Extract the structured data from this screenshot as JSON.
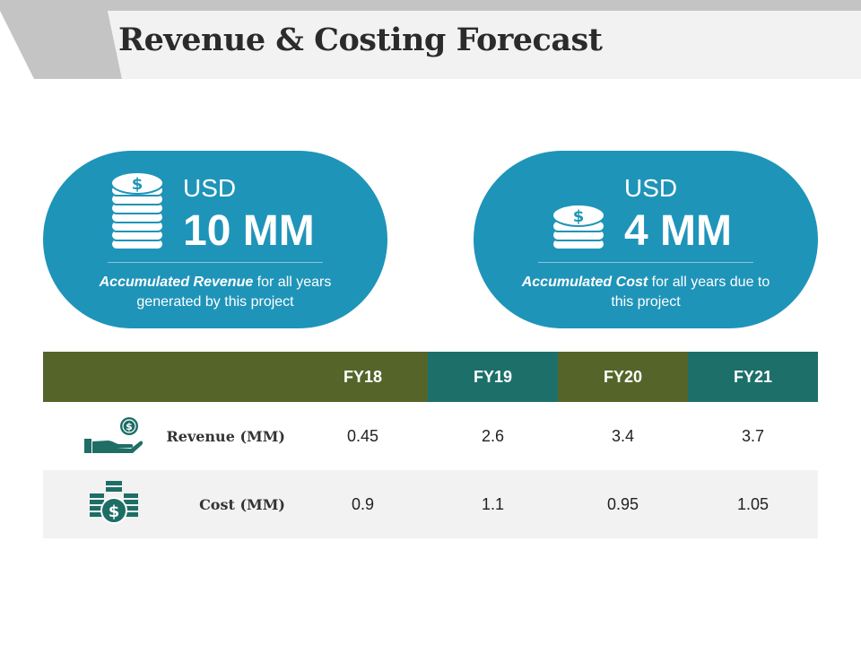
{
  "header": {
    "title": "Revenue & Costing Forecast"
  },
  "summary_cards": [
    {
      "currency": "USD",
      "amount": "10 MM",
      "description_emphasis": "Accumulated Revenue",
      "description_rest": " for all years generated by this project",
      "icon": "coin-stack-icon"
    },
    {
      "currency": "USD",
      "amount": "4 MM",
      "description_emphasis": "Accumulated Cost",
      "description_rest": " for all years due to this project",
      "icon": "coin-stack-icon"
    }
  ],
  "table": {
    "columns": [
      "FY18",
      "FY19",
      "FY20",
      "FY21"
    ],
    "rows": [
      {
        "label": "Revenue (MM)",
        "icon": "hand-money-icon",
        "values": [
          "0.45",
          "2.6",
          "3.4",
          "3.7"
        ]
      },
      {
        "label": "Cost (MM)",
        "icon": "cash-stack-icon",
        "values": [
          "0.9",
          "1.1",
          "0.95",
          "1.05"
        ]
      }
    ]
  },
  "colors": {
    "pill_blue": "#1f94b9",
    "header_green": "#55652a",
    "header_teal": "#1d6f6a",
    "icon_teal": "#1e6e66",
    "row_alt": "#f2f2f2",
    "band_light": "#f2f2f2",
    "band_dark": "#c4c4c4"
  }
}
